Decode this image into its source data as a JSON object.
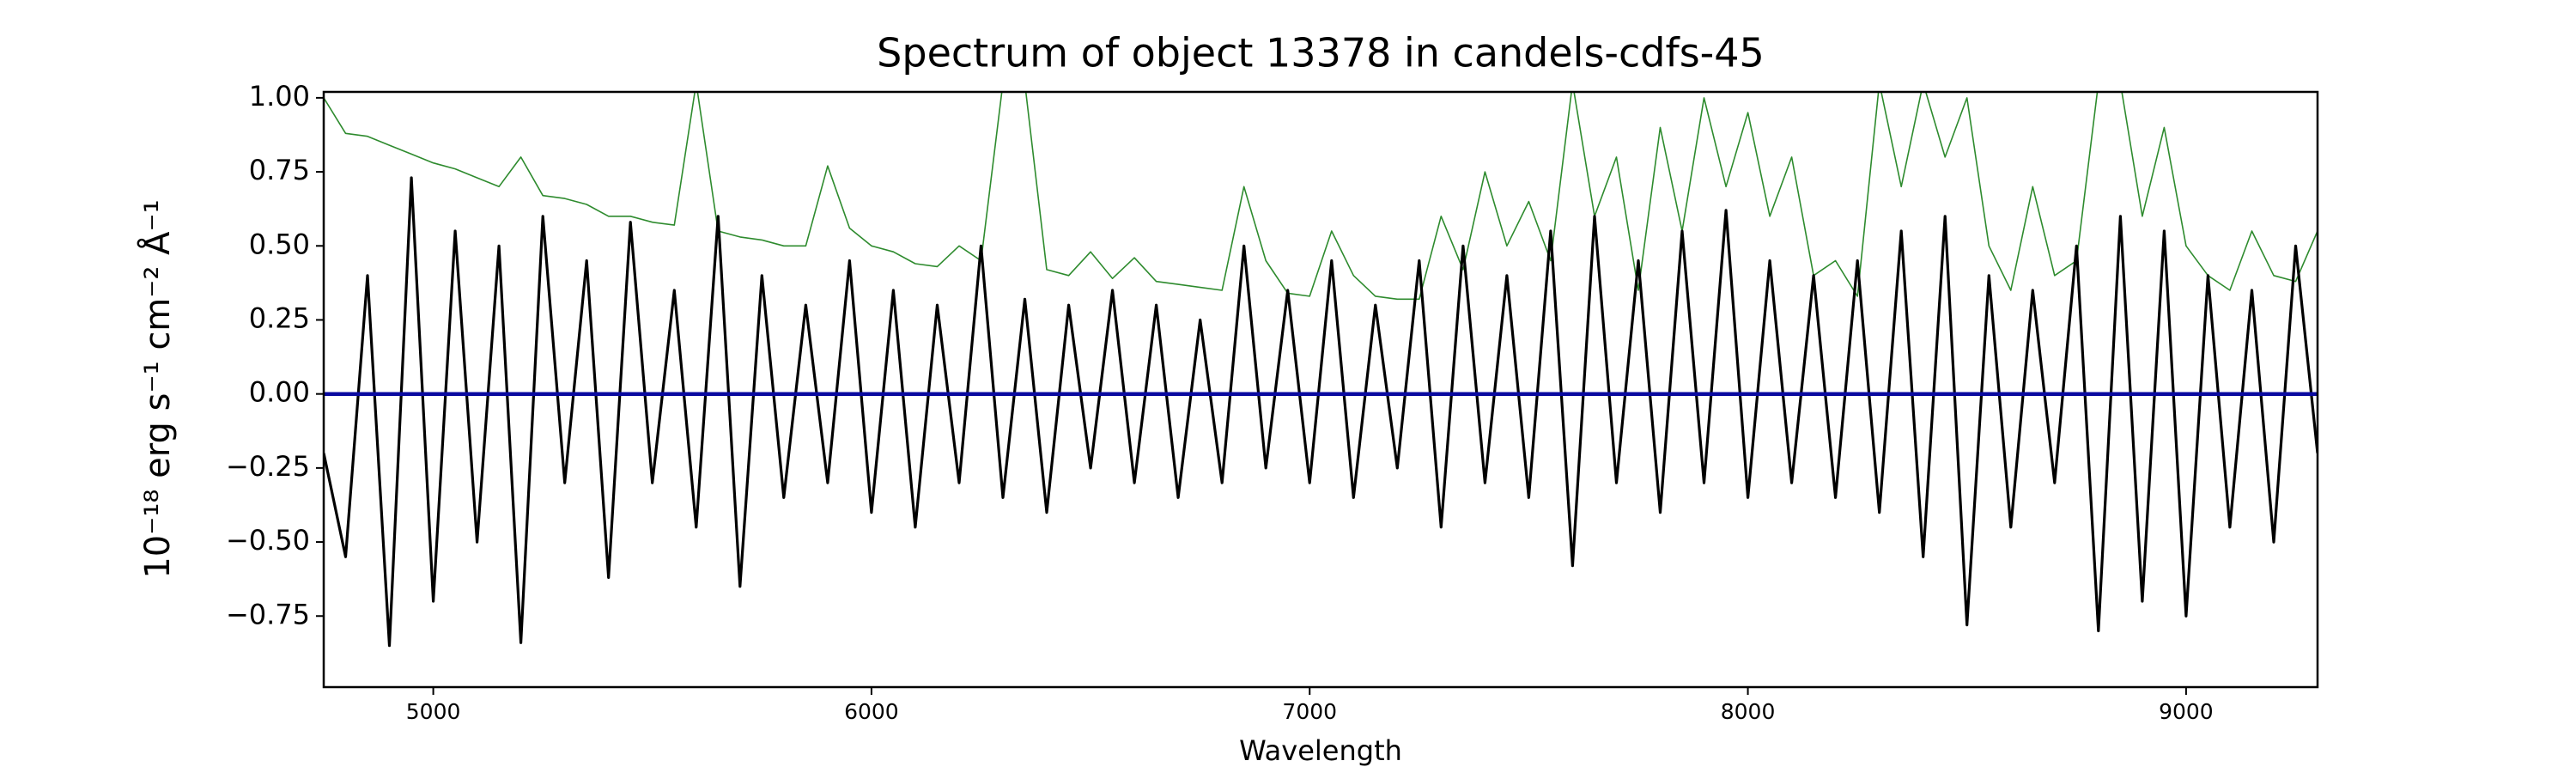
{
  "chart_data": {
    "type": "line",
    "title": "Spectrum of object 13378 in candels-cdfs-45",
    "xlabel": "Wavelength",
    "ylabel": "10⁻¹⁸ erg s⁻¹ cm⁻² Å⁻¹",
    "x": [
      4750,
      4800,
      4850,
      4900,
      4950,
      5000,
      5050,
      5100,
      5150,
      5200,
      5250,
      5300,
      5350,
      5400,
      5450,
      5500,
      5550,
      5600,
      5650,
      5700,
      5750,
      5800,
      5850,
      5900,
      5950,
      6000,
      6050,
      6100,
      6150,
      6200,
      6250,
      6300,
      6350,
      6400,
      6450,
      6500,
      6550,
      6600,
      6650,
      6700,
      6750,
      6800,
      6850,
      6900,
      6950,
      7000,
      7050,
      7100,
      7150,
      7200,
      7250,
      7300,
      7350,
      7400,
      7450,
      7500,
      7550,
      7600,
      7650,
      7700,
      7750,
      7800,
      7850,
      7900,
      7950,
      8000,
      8050,
      8100,
      8150,
      8200,
      8250,
      8300,
      8350,
      8400,
      8450,
      8500,
      8550,
      8600,
      8650,
      8700,
      8750,
      8800,
      8850,
      8900,
      8950,
      9000,
      9050,
      9100,
      9150,
      9200,
      9250,
      9300
    ],
    "series": [
      {
        "color": "#2e8b2e",
        "width": 1.6,
        "values": [
          1.0,
          0.88,
          0.87,
          0.84,
          0.81,
          0.78,
          0.76,
          0.73,
          0.7,
          0.8,
          0.67,
          0.66,
          0.64,
          0.6,
          0.6,
          0.58,
          0.57,
          1.05,
          0.55,
          0.53,
          0.52,
          0.5,
          0.5,
          0.77,
          0.56,
          0.5,
          0.48,
          0.44,
          0.43,
          0.5,
          0.45,
          1.05,
          1.05,
          0.42,
          0.4,
          0.48,
          0.39,
          0.46,
          0.38,
          0.37,
          0.36,
          0.35,
          0.7,
          0.45,
          0.34,
          0.33,
          0.55,
          0.4,
          0.33,
          0.32,
          0.32,
          0.6,
          0.42,
          0.75,
          0.5,
          0.65,
          0.45,
          1.05,
          0.6,
          0.8,
          0.35,
          0.9,
          0.55,
          1.0,
          0.7,
          0.95,
          0.6,
          0.8,
          0.4,
          0.45,
          0.33,
          1.05,
          0.7,
          1.05,
          0.8,
          1.0,
          0.5,
          0.35,
          0.7,
          0.4,
          0.45,
          1.05,
          1.05,
          0.6,
          0.9,
          0.5,
          0.4,
          0.35,
          0.55,
          0.4,
          0.38,
          0.55
        ]
      },
      {
        "color": "#000000",
        "width": 3.2,
        "values": [
          -0.2,
          -0.55,
          0.4,
          -0.85,
          0.73,
          -0.7,
          0.55,
          -0.5,
          0.5,
          -0.84,
          0.6,
          -0.3,
          0.45,
          -0.62,
          0.58,
          -0.3,
          0.35,
          -0.45,
          0.6,
          -0.65,
          0.4,
          -0.35,
          0.3,
          -0.3,
          0.45,
          -0.4,
          0.35,
          -0.45,
          0.3,
          -0.3,
          0.5,
          -0.35,
          0.32,
          -0.4,
          0.3,
          -0.25,
          0.35,
          -0.3,
          0.3,
          -0.35,
          0.25,
          -0.3,
          0.5,
          -0.25,
          0.35,
          -0.3,
          0.45,
          -0.35,
          0.3,
          -0.25,
          0.45,
          -0.45,
          0.5,
          -0.3,
          0.4,
          -0.35,
          0.55,
          -0.58,
          0.6,
          -0.3,
          0.45,
          -0.4,
          0.55,
          -0.3,
          0.62,
          -0.35,
          0.45,
          -0.3,
          0.4,
          -0.35,
          0.45,
          -0.4,
          0.55,
          -0.55,
          0.6,
          -0.78,
          0.4,
          -0.45,
          0.35,
          -0.3,
          0.5,
          -0.8,
          0.6,
          -0.7,
          0.55,
          -0.75,
          0.4,
          -0.45,
          0.35,
          -0.5,
          0.5,
          -0.2
        ]
      },
      {
        "color": "#0a0aa0",
        "width": 4.5,
        "x": [
          4750,
          9300
        ],
        "values": [
          0,
          0
        ]
      }
    ],
    "xlim": [
      4750,
      9300
    ],
    "ylim": [
      -0.99,
      1.02
    ],
    "xticks": [
      5000,
      6000,
      7000,
      8000,
      9000
    ],
    "yticks": [
      {
        "value": -0.75,
        "label": "−0.75"
      },
      {
        "value": -0.5,
        "label": "−0.50"
      },
      {
        "value": -0.25,
        "label": "−0.25"
      },
      {
        "value": 0,
        "label": "0.00"
      },
      {
        "value": 0.25,
        "label": "0.25"
      },
      {
        "value": 0.5,
        "label": "0.50"
      },
      {
        "value": 0.75,
        "label": "0.75"
      },
      {
        "value": 1.0,
        "label": "1.00"
      }
    ],
    "grid": false
  }
}
